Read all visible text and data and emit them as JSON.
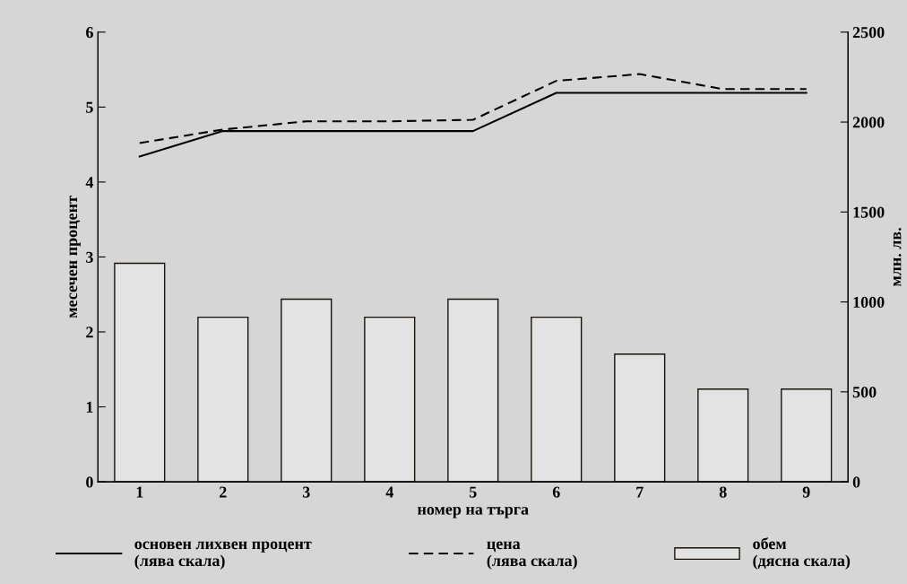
{
  "chart_data": {
    "type": "line",
    "xlabel": "номер на търга",
    "ylabel": "месечен процент",
    "y2label": "млн. лв.",
    "categories": [
      "1",
      "2",
      "3",
      "4",
      "5",
      "6",
      "7",
      "8",
      "9"
    ],
    "series": [
      {
        "name": "основен лихвен процент\n(лява скала)",
        "line_style": "solid",
        "color": "#000000",
        "values": [
          4.34,
          4.68,
          4.68,
          4.68,
          4.68,
          5.19,
          5.19,
          5.19,
          5.19
        ]
      },
      {
        "name": "цена\n(лява скала)",
        "line_style": "dashed",
        "color": "#000000",
        "values": [
          4.52,
          4.7,
          4.81,
          4.81,
          4.83,
          5.35,
          5.44,
          5.24,
          5.24
        ]
      },
      {
        "name": "обем\n(дясна скала)",
        "type": "bar",
        "axis": "y2",
        "color": "#e3e3e3",
        "values": [
          1215,
          915,
          1015,
          915,
          1015,
          915,
          710,
          515,
          515
        ]
      }
    ],
    "ylim": [
      0,
      6
    ],
    "yticks": [
      0,
      1,
      2,
      3,
      4,
      5,
      6
    ],
    "y2lim": [
      0,
      2500
    ],
    "y2ticks": [
      0,
      500,
      1000,
      1500,
      2000,
      2500
    ],
    "grid": false,
    "legend": "bottom",
    "marker": "none"
  }
}
